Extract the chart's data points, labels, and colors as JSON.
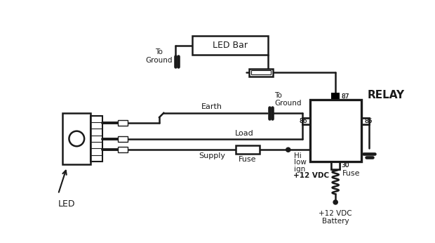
{
  "bg": "#ffffff",
  "lc": "#1a1a1a",
  "lw": 1.8,
  "figw": 6.2,
  "figh": 3.46,
  "dpi": 100,
  "labels": {
    "led_bar": "LED Bar",
    "to_ground_top": "To\nGround",
    "to_ground_mid": "To\nGround",
    "earth": "Earth",
    "load": "Load",
    "supply": "Supply",
    "fuse_left": "Fuse",
    "hi": "Hi",
    "low": "low",
    "ign": "ign",
    "plus12vdc": "+12 VDC",
    "relay": "RELAY",
    "fuse_right": "Fuse",
    "battery": "+12 VDC\nBattery",
    "led": "LED",
    "p86": "86",
    "p87": "87",
    "p85": "85",
    "p30": "30"
  }
}
